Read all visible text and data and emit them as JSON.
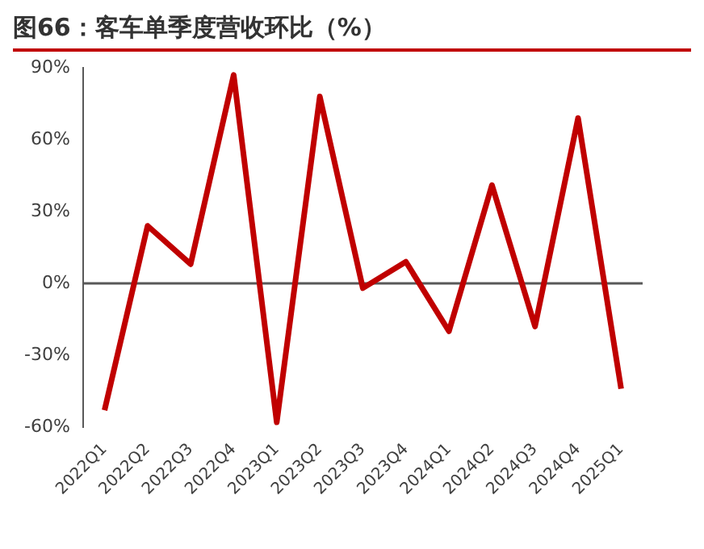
{
  "chart_data": {
    "type": "line",
    "title": "图66：客车单季度营收环比（%）",
    "categories": [
      "2022Q1",
      "2022Q2",
      "2022Q3",
      "2022Q4",
      "2023Q1",
      "2023Q2",
      "2023Q3",
      "2023Q4",
      "2024Q1",
      "2024Q2",
      "2024Q3",
      "2024Q4",
      "2025Q1"
    ],
    "series": [
      {
        "color": "#c00000",
        "values": [
          -53,
          24,
          8,
          87,
          -58,
          78,
          -2,
          9,
          -20,
          41,
          -18,
          69,
          -44
        ]
      }
    ],
    "ylim": [
      -60,
      90
    ],
    "yticks": [
      {
        "value": -60,
        "label": "-60%"
      },
      {
        "value": -30,
        "label": "-30%"
      },
      {
        "value": 0,
        "label": "0%"
      },
      {
        "value": 30,
        "label": "30%"
      },
      {
        "value": 60,
        "label": "60%"
      },
      {
        "value": 90,
        "label": "90%"
      }
    ],
    "ref_lines": [
      {
        "axis": "y",
        "value": 0,
        "color": "#595959"
      }
    ],
    "grid": false,
    "legend": false,
    "marker": "none",
    "line_style": "solid"
  }
}
